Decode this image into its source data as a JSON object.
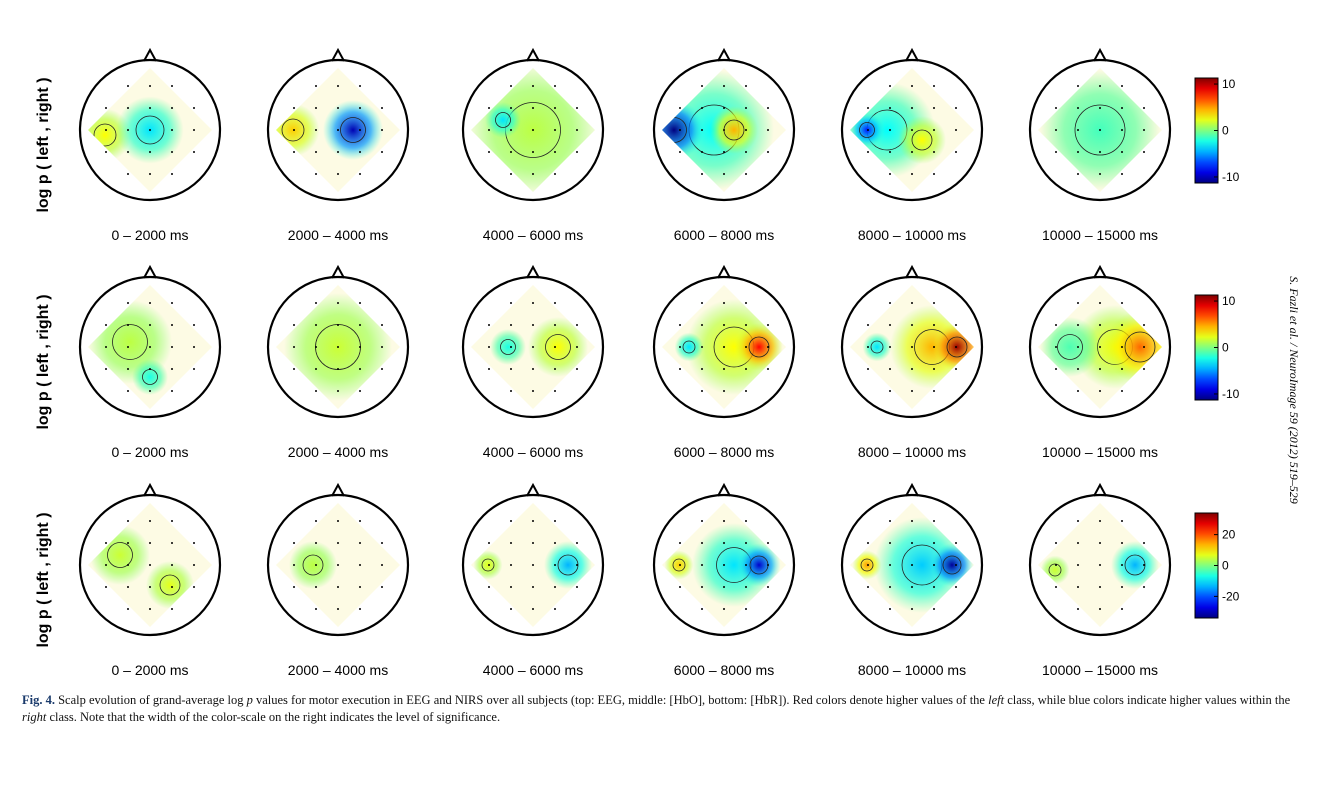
{
  "rows": [
    {
      "ylabel": "log p ( left , right )",
      "panels": [
        "0 – 2000 ms",
        "2000 – 4000 ms",
        "4000 – 6000 ms",
        "6000 – 8000 ms",
        "8000 – 10000 ms",
        "10000 – 15000 ms"
      ],
      "colorbar": {
        "clim": [
          -11.3,
          11.3
        ],
        "ticks": [
          10,
          0,
          -10
        ]
      }
    },
    {
      "ylabel": "log p ( left , right )",
      "panels": [
        "0 – 2000 ms",
        "2000 – 4000 ms",
        "4000 – 6000 ms",
        "6000 – 8000 ms",
        "8000 – 10000 ms",
        "10000 – 15000 ms"
      ],
      "colorbar": {
        "clim": [
          -11.3,
          11.3
        ],
        "ticks": [
          10,
          0,
          -10
        ]
      }
    },
    {
      "ylabel": "log p ( left , right )",
      "panels": [
        "0 – 2000 ms",
        "2000 – 4000 ms",
        "4000 – 6000 ms",
        "6000 – 8000 ms",
        "8000 – 10000 ms",
        "10000 – 15000 ms"
      ],
      "colorbar": {
        "clim": [
          -34,
          34
        ],
        "ticks": [
          20,
          0,
          -20
        ]
      }
    }
  ],
  "side_note": "S. Fazli et al. / NeuroImage 59 (2012) 519–529",
  "caption": {
    "label": "Fig. 4.",
    "parts": [
      " Scalp evolution of grand-average log ",
      "p",
      " values for motor execution in EEG and NIRS over all subjects (top: EEG, middle: [HbO], bottom: [HbR]). Red colors denote higher values of the ",
      "left",
      " class, while blue colors indicate higher values within the ",
      "right",
      " class. Note that the width of the color-scale on the right indicates the level of significance."
    ]
  }
}
